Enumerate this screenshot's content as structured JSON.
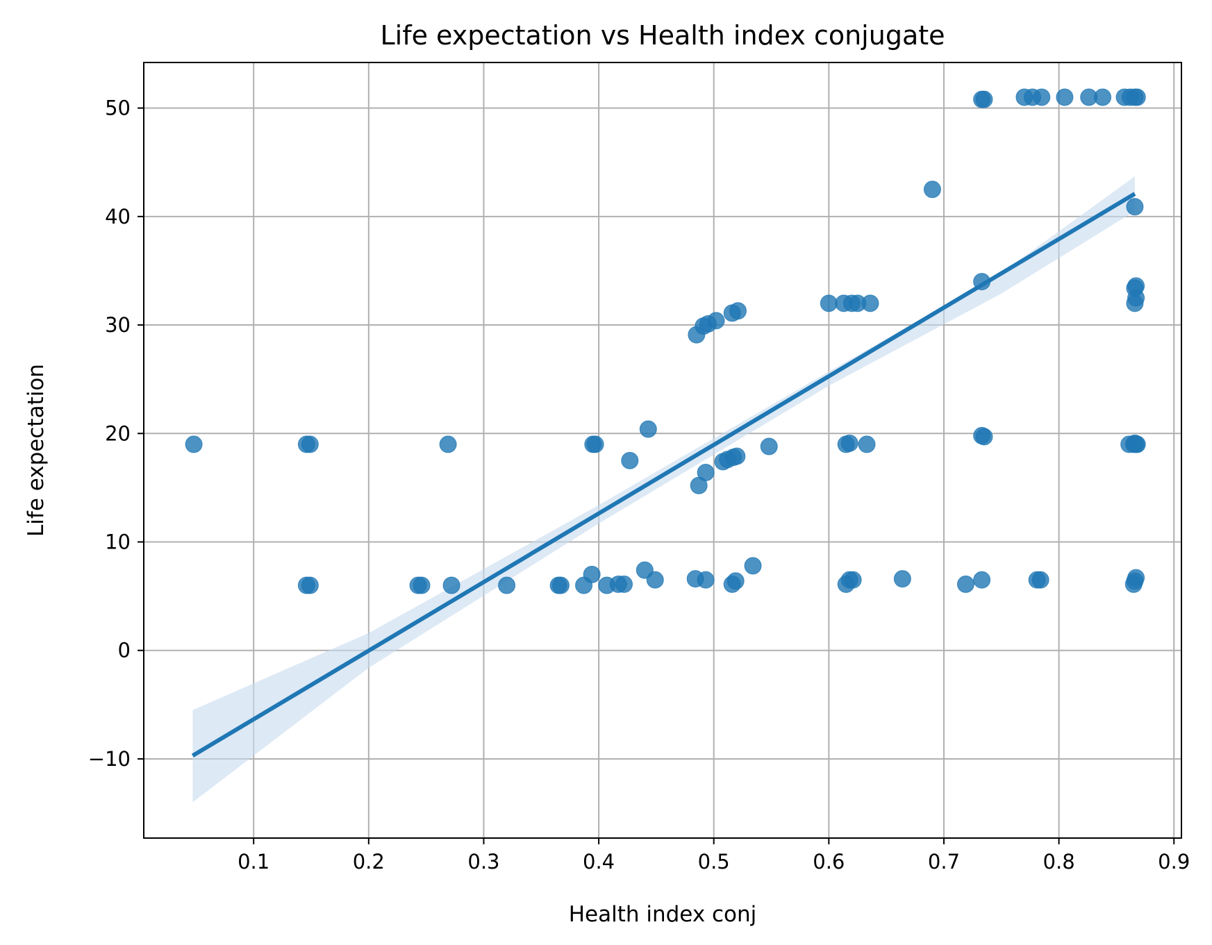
{
  "chart_data": {
    "type": "scatter",
    "title": "Life expectation vs Health index conjugate",
    "xlabel": "Health index conj",
    "ylabel": "Life expectation",
    "xlim": [
      0.0045,
      0.9065
    ],
    "ylim": [
      -17.3,
      54.2
    ],
    "xticks": [
      0.1,
      0.2,
      0.3,
      0.4,
      0.5,
      0.6,
      0.7,
      0.8,
      0.9
    ],
    "yticks": [
      -10,
      0,
      10,
      20,
      30,
      40,
      50
    ],
    "xtick_labels": [
      "0.1",
      "0.2",
      "0.3",
      "0.4",
      "0.5",
      "0.6",
      "0.7",
      "0.8",
      "0.9"
    ],
    "ytick_labels": [
      "−10",
      "0",
      "10",
      "20",
      "30",
      "40",
      "50"
    ],
    "grid": true,
    "colors": {
      "points": "#1f77b4",
      "line": "#1f77b4",
      "band": "#c6dbef"
    },
    "series": [
      {
        "x": [
          0.048,
          0.146,
          0.149,
          0.269,
          0.395,
          0.397,
          0.443,
          0.427,
          0.487,
          0.493,
          0.508,
          0.512,
          0.517,
          0.52,
          0.548,
          0.615,
          0.618,
          0.633,
          0.733,
          0.735,
          0.861,
          0.865,
          0.866,
          0.867,
          0.868,
          0.146,
          0.149,
          0.243,
          0.246,
          0.272,
          0.32,
          0.365,
          0.367,
          0.387,
          0.394,
          0.407,
          0.417,
          0.422,
          0.44,
          0.449,
          0.484,
          0.493,
          0.516,
          0.519,
          0.534,
          0.615,
          0.618,
          0.621,
          0.664,
          0.719,
          0.733,
          0.781,
          0.784,
          0.865,
          0.866,
          0.867,
          0.485,
          0.491,
          0.495,
          0.502,
          0.516,
          0.521,
          0.6,
          0.613,
          0.62,
          0.625,
          0.636,
          0.733,
          0.866,
          0.867,
          0.866,
          0.867,
          0.69,
          0.866,
          0.733,
          0.735,
          0.77,
          0.777,
          0.785,
          0.805,
          0.826,
          0.838,
          0.857,
          0.862,
          0.866,
          0.868
        ],
        "y": [
          19.0,
          19.0,
          19.0,
          19.0,
          19.0,
          19.0,
          20.4,
          17.5,
          15.2,
          16.4,
          17.4,
          17.6,
          17.8,
          17.9,
          18.8,
          19.0,
          19.1,
          19.0,
          19.8,
          19.7,
          19.0,
          19.0,
          19.1,
          19.0,
          19.0,
          6.0,
          6.0,
          6.0,
          6.0,
          6.0,
          6.0,
          6.0,
          6.0,
          6.0,
          7.0,
          6.0,
          6.1,
          6.1,
          7.4,
          6.5,
          6.6,
          6.5,
          6.1,
          6.4,
          7.8,
          6.1,
          6.5,
          6.5,
          6.6,
          6.1,
          6.5,
          6.5,
          6.5,
          6.1,
          6.4,
          6.7,
          29.1,
          29.9,
          30.1,
          30.4,
          31.1,
          31.3,
          32.0,
          32.0,
          32.0,
          32.0,
          32.0,
          34.0,
          32.0,
          32.5,
          33.4,
          33.6,
          42.5,
          40.9,
          50.8,
          50.8,
          51.0,
          51.0,
          51.0,
          51.0,
          51.0,
          51.0,
          51.0,
          51.0,
          51.0,
          51.0
        ]
      }
    ],
    "regression": {
      "x": [
        0.047,
        0.866
      ],
      "y": [
        -9.7,
        42.1
      ]
    },
    "ci_band": {
      "x": [
        0.047,
        0.2,
        0.4,
        0.6,
        0.75,
        0.866
      ],
      "lower": [
        -14.0,
        -1.6,
        11.7,
        24.4,
        32.9,
        40.5
      ],
      "upper": [
        -5.5,
        1.6,
        13.4,
        25.7,
        34.8,
        43.7
      ]
    }
  }
}
